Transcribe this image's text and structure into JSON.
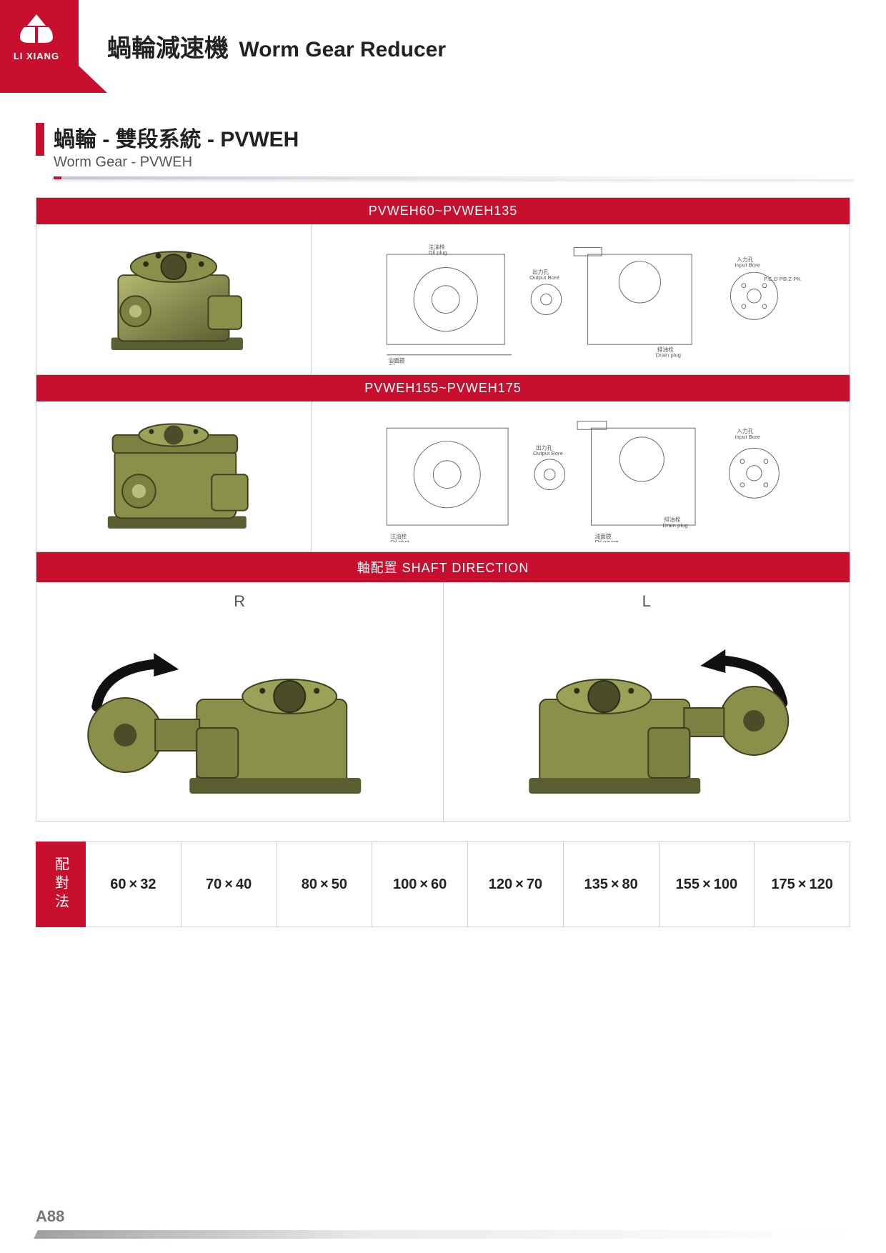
{
  "colors": {
    "brand_red": "#c8102e",
    "text_dark": "#222222",
    "text_mid": "#555555",
    "text_light": "#777777",
    "border": "#d0d0d0",
    "gear_body": "#8a8f4a",
    "gear_dark": "#5b5e30",
    "gear_light": "#b4b970"
  },
  "brand": {
    "name": "LI XIANG"
  },
  "header": {
    "title_zh": "蝸輪減速機",
    "title_en": "Worm Gear Reducer"
  },
  "section": {
    "title_zh": "蝸輪 - 雙段系統 - PVWEH",
    "title_en": "Worm Gear - PVWEH"
  },
  "models": {
    "band1": "PVWEH60~PVWEH135",
    "band2": "PVWEH155~PVWEH175",
    "drawing_labels": {
      "oil_plug_zh": "注油栓",
      "oil_plug_en": "Oil plug",
      "oil_gauge_zh": "油面鏡",
      "oil_gauge_en": "Oil gauge",
      "output_bore_zh": "出力孔",
      "output_bore_en": "Output Bore",
      "input_bore_zh": "入力孔",
      "input_bore_en": "Input Bore",
      "drain_plug_zh": "排油栓",
      "drain_plug_en": "Drain plug",
      "pcd": "P.C.D PB Z-PK"
    }
  },
  "shaft": {
    "band": "軸配置 SHAFT DIRECTION",
    "left_label": "R",
    "right_label": "L"
  },
  "pairing": {
    "label": "配對法",
    "values": [
      "60×32",
      "70×40",
      "80×50",
      "100×60",
      "120×70",
      "135×80",
      "155×100",
      "175×120"
    ]
  },
  "page_number": "A88"
}
